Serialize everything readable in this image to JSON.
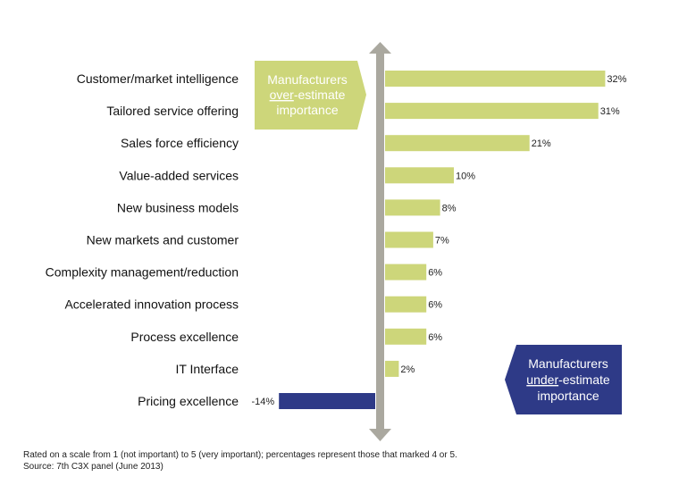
{
  "chart_data": {
    "type": "bar",
    "orientation": "horizontal",
    "categories": [
      "Customer/market intelligence",
      "Tailored service offering",
      "Sales force efficiency",
      "Value-added services",
      "New business models",
      "New markets and customer",
      "Complexity management/reduction",
      "Accelerated innovation process",
      "Process excellence",
      "IT Interface",
      "Pricing excellence"
    ],
    "values": [
      32,
      31,
      21,
      10,
      8,
      7,
      6,
      6,
      6,
      2,
      -14
    ],
    "data_labels": [
      "32%",
      "31%",
      "21%",
      "10%",
      "8%",
      "7%",
      "6%",
      "6%",
      "6%",
      "2%",
      "-14%"
    ],
    "title": "",
    "xlabel": "",
    "ylabel": "",
    "xlim": [
      -14,
      32
    ],
    "grid": false,
    "colors": {
      "positive": "#cdd67a",
      "negative": "#2e3a87",
      "axis": "#aaa89f"
    },
    "annotations": {
      "over": {
        "line1": "Manufacturers",
        "underlined": "over",
        "rest": "-estimate",
        "line3": "importance"
      },
      "under": {
        "line1": "Manufacturers",
        "underlined": "under",
        "rest": "-estimate",
        "line3": "importance"
      }
    }
  },
  "footnote": {
    "line1": "Rated on a scale from 1 (not important) to 5 (very important); percentages represent those that marked 4 or 5.",
    "line2": "Source: 7th C3X panel (June 2013)"
  }
}
